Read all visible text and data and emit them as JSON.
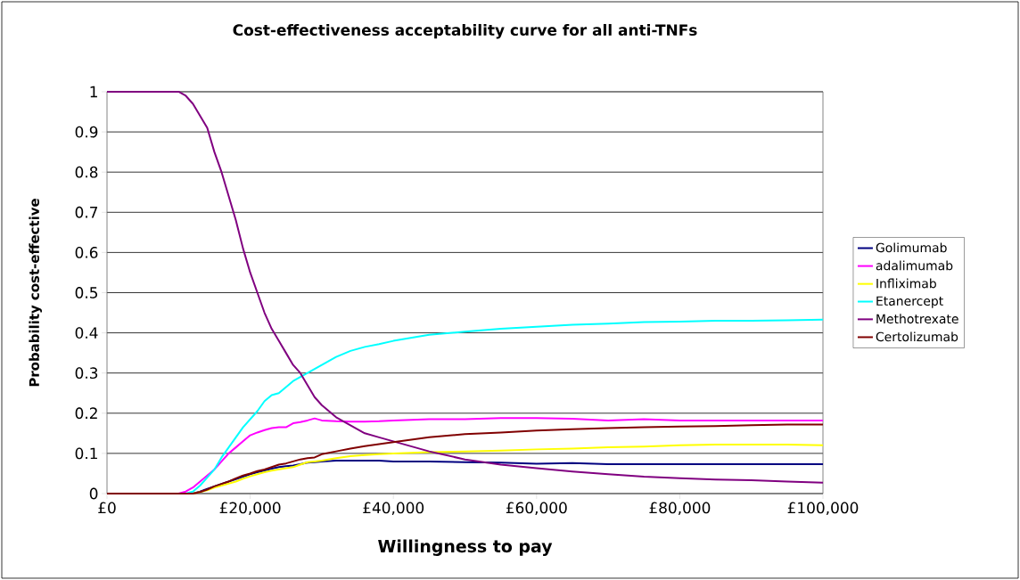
{
  "chart_data": {
    "type": "line",
    "title": "Cost-effectiveness acceptability curve for all anti-TNFs",
    "xlabel": "Willingness to pay",
    "ylabel": "Probability cost-effective",
    "x": [
      0,
      10000,
      11000,
      12000,
      13000,
      14000,
      15000,
      16000,
      17000,
      18000,
      19000,
      20000,
      21000,
      22000,
      23000,
      24000,
      25000,
      26000,
      27000,
      28000,
      29000,
      30000,
      32000,
      34000,
      36000,
      38000,
      40000,
      45000,
      50000,
      55000,
      60000,
      65000,
      70000,
      75000,
      80000,
      85000,
      90000,
      95000,
      100000
    ],
    "xlim": [
      0,
      100000
    ],
    "xticks": [
      {
        "value": 0,
        "label": "£0"
      },
      {
        "value": 20000,
        "label": "£20,000"
      },
      {
        "value": 40000,
        "label": "£40,000"
      },
      {
        "value": 60000,
        "label": "£60,000"
      },
      {
        "value": 80000,
        "label": "£80,000"
      },
      {
        "value": 100000,
        "label": "£100,000"
      }
    ],
    "ylim": [
      0,
      1
    ],
    "yticks": [
      0,
      0.1,
      0.2,
      0.3,
      0.4,
      0.5,
      0.6,
      0.7,
      0.8,
      0.9,
      1
    ],
    "grid": "y",
    "legend": "right",
    "series": [
      {
        "name": "Golimumab",
        "color": "#000080",
        "values": [
          null,
          null,
          null,
          0,
          0.005,
          0.012,
          0.018,
          0.024,
          0.03,
          0.036,
          0.042,
          0.048,
          0.053,
          0.057,
          0.062,
          0.066,
          0.068,
          0.07,
          0.073,
          0.077,
          0.078,
          0.08,
          0.082,
          0.082,
          0.082,
          0.082,
          0.08,
          0.08,
          0.078,
          0.077,
          0.074,
          0.076,
          0.073,
          0.073,
          0.073,
          0.073,
          0.073,
          0.073,
          0.073
        ]
      },
      {
        "name": "adalimumab",
        "color": "#ff00ff",
        "values": [
          0,
          0,
          0.005,
          0.015,
          0.03,
          0.045,
          0.06,
          0.08,
          0.1,
          0.115,
          0.13,
          0.145,
          0.152,
          0.158,
          0.163,
          0.165,
          0.165,
          0.175,
          0.178,
          0.182,
          0.187,
          0.182,
          0.18,
          0.179,
          0.179,
          0.18,
          0.182,
          0.185,
          0.185,
          0.188,
          0.188,
          0.186,
          0.182,
          0.185,
          0.182,
          0.182,
          0.182,
          0.182,
          0.182
        ]
      },
      {
        "name": "Infliximab",
        "color": "#ffff00",
        "values": [
          null,
          null,
          null,
          0,
          0.004,
          0.008,
          0.015,
          0.02,
          0.025,
          0.03,
          0.037,
          0.043,
          0.048,
          0.053,
          0.057,
          0.06,
          0.063,
          0.066,
          0.072,
          0.078,
          0.08,
          0.082,
          0.088,
          0.093,
          0.096,
          0.098,
          0.1,
          0.103,
          0.105,
          0.107,
          0.11,
          0.112,
          0.115,
          0.117,
          0.12,
          0.122,
          0.122,
          0.122,
          0.12
        ]
      },
      {
        "name": "Etanercept",
        "color": "#00ffff",
        "values": [
          0,
          0,
          0,
          0.005,
          0.02,
          0.04,
          0.06,
          0.09,
          0.115,
          0.14,
          0.165,
          0.185,
          0.205,
          0.23,
          0.245,
          0.25,
          0.265,
          0.28,
          0.29,
          0.3,
          0.31,
          0.32,
          0.34,
          0.355,
          0.365,
          0.372,
          0.38,
          0.395,
          0.403,
          0.41,
          0.415,
          0.42,
          0.423,
          0.427,
          0.428,
          0.43,
          0.43,
          0.431,
          0.433
        ]
      },
      {
        "name": "Methotrexate",
        "color": "#800080",
        "values": [
          1,
          1,
          0.99,
          0.97,
          0.94,
          0.91,
          0.85,
          0.8,
          0.74,
          0.68,
          0.61,
          0.55,
          0.5,
          0.45,
          0.41,
          0.38,
          0.35,
          0.32,
          0.3,
          0.27,
          0.24,
          0.22,
          0.19,
          0.17,
          0.15,
          0.14,
          0.13,
          0.105,
          0.085,
          0.072,
          0.063,
          0.055,
          0.048,
          0.042,
          0.038,
          0.035,
          0.033,
          0.03,
          0.027
        ]
      },
      {
        "name": "Certolizumab",
        "color": "#800000",
        "values": [
          0,
          0,
          0,
          0,
          0.004,
          0.01,
          0.018,
          0.024,
          0.03,
          0.038,
          0.045,
          0.05,
          0.056,
          0.06,
          0.066,
          0.072,
          0.075,
          0.08,
          0.085,
          0.088,
          0.09,
          0.098,
          0.105,
          0.112,
          0.118,
          0.123,
          0.128,
          0.14,
          0.148,
          0.152,
          0.157,
          0.16,
          0.163,
          0.165,
          0.167,
          0.168,
          0.17,
          0.172,
          0.172
        ]
      }
    ]
  }
}
